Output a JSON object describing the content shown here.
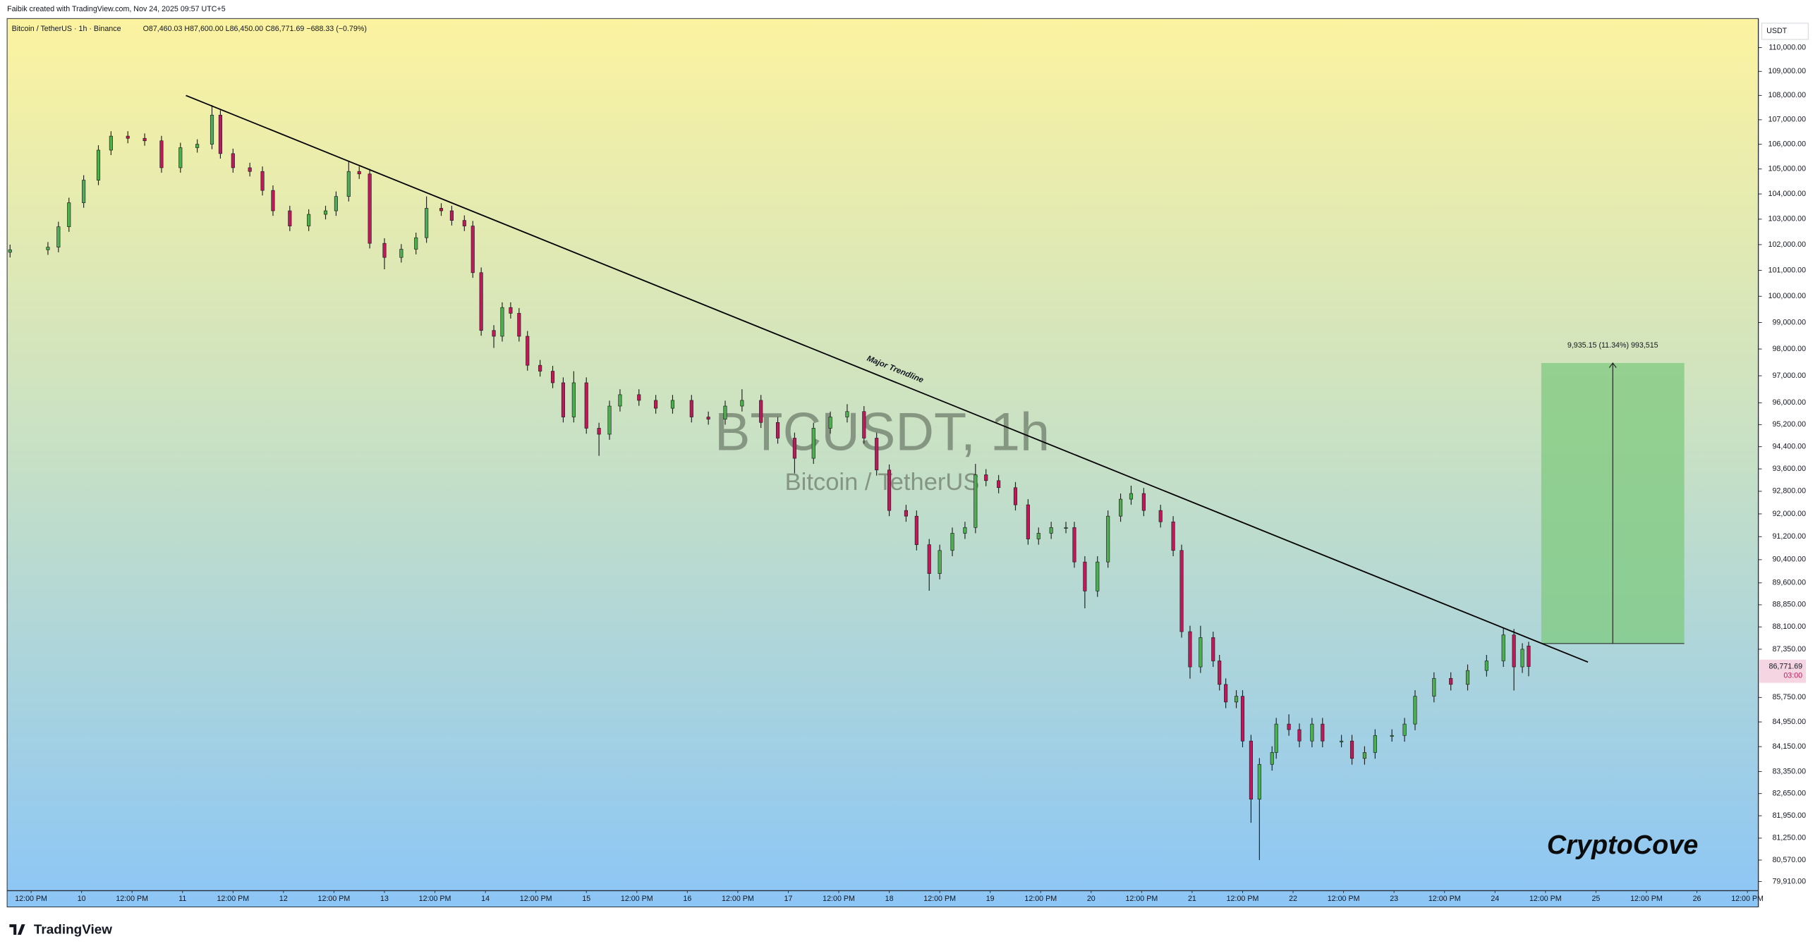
{
  "header": "Faibik created with TradingView.com, Nov 24, 2025 09:57 UTC+5",
  "chart_data": {
    "type": "candlestick",
    "legend": "Bitcoin / TetherUS · 1h · Binance",
    "ohlc_legend": "O87,460.03 H87,600.00 L86,450.00 C86,771.69 −688.33 (−0.79%)",
    "watermark_symbol": "BTCUSDT, 1h",
    "watermark_name": "Bitcoin / TetherUS",
    "currency": "USDT",
    "last_price_label": "86,771.69",
    "countdown": "03:00",
    "up_color": "#4caf50",
    "down_color": "#c2185b",
    "log_y": true,
    "grid": false,
    "xlim": [
      -17.7,
      398.6
    ],
    "ylim": [
      79630,
      111230
    ],
    "x": [
      -17,
      -8,
      -5.5,
      -3,
      0.5,
      4,
      7,
      11,
      15,
      19,
      23.5,
      27.5,
      31,
      33,
      36,
      40,
      43,
      45.5,
      49.5,
      54,
      58,
      60.5,
      63.5,
      66,
      68.5,
      72,
      76,
      79.5,
      82,
      85.5,
      88,
      91,
      93,
      95,
      98,
      100,
      102,
      104,
      106,
      109,
      112,
      114.5,
      117,
      120,
      123,
      125.5,
      128,
      132.5,
      136.5,
      140.5,
      145,
      149,
      153,
      157,
      161.5,
      165.5,
      169.5,
      174,
      178,
      182,
      186,
      189,
      192,
      196,
      198.5,
      201.5,
      204,
      207,
      210,
      212.5,
      215,
      218,
      222,
      225,
      227.5,
      230.5,
      234,
      236,
      238.5,
      241.5,
      244,
      247,
      249.5,
      252.5,
      256.5,
      259.5,
      261.5,
      263.5,
      266,
      269,
      270.5,
      272,
      274.5,
      276,
      278,
      280,
      283,
      284,
      287,
      289.5,
      292.5,
      295,
      299.5,
      302,
      305,
      307.5,
      311.5,
      314.5,
      317,
      321.5,
      325.5,
      329.5,
      334,
      338,
      340.5,
      342.5,
      344
    ],
    "open": [
      101700,
      101800,
      101900,
      102700,
      103650,
      104550,
      105760,
      106330,
      106240,
      106140,
      105050,
      105860,
      106000,
      107190,
      105620,
      105050,
      104900,
      104140,
      103330,
      102730,
      103190,
      103330,
      103900,
      104900,
      104800,
      102050,
      101500,
      101820,
      102270,
      103430,
      103330,
      102950,
      102730,
      100910,
      98700,
      98480,
      99570,
      99350,
      98480,
      97390,
      97170,
      96740,
      95480,
      96740,
      95070,
      94850,
      95880,
      96300,
      96090,
      95800,
      96090,
      95480,
      95400,
      95880,
      96090,
      95280,
      94710,
      93980,
      95070,
      95480,
      95680,
      94710,
      93560,
      92120,
      91920,
      90920,
      89920,
      90720,
      91320,
      91520,
      93390,
      93180,
      92930,
      92320,
      91120,
      91320,
      91520,
      91520,
      90320,
      89320,
      90320,
      91920,
      92520,
      92720,
      92120,
      91720,
      90720,
      87940,
      86760,
      87740,
      86960,
      86180,
      85600,
      85790,
      84330,
      82470,
      83580,
      83960,
      84880,
      84700,
      84330,
      84880,
      84330,
      84330,
      83770,
      83960,
      84510,
      84510,
      84880,
      85790,
      86380,
      86180,
      86640,
      86960,
      87830,
      86760,
      87460.03
    ],
    "high": [
      102000,
      102100,
      102900,
      103850,
      104750,
      105960,
      106530,
      106530,
      106440,
      106340,
      106060,
      106200,
      107600,
      107390,
      105820,
      105250,
      105100,
      104340,
      103530,
      103390,
      103530,
      104100,
      105300,
      105100,
      105000,
      102250,
      102020,
      102470,
      103900,
      103630,
      103530,
      103150,
      102930,
      101110,
      98900,
      99770,
      99770,
      99550,
      98680,
      97590,
      97370,
      96940,
      97170,
      96940,
      95270,
      96080,
      96500,
      96500,
      96290,
      96290,
      96290,
      95680,
      96080,
      96500,
      96290,
      95480,
      94910,
      95270,
      95680,
      95950,
      95880,
      94910,
      93760,
      92320,
      92120,
      91120,
      90920,
      91520,
      91720,
      93780,
      93590,
      93380,
      93130,
      92520,
      91520,
      91720,
      91720,
      91720,
      90520,
      90520,
      92120,
      92720,
      93000,
      92920,
      92320,
      91920,
      90920,
      88140,
      88140,
      87940,
      87160,
      86380,
      85990,
      85990,
      84530,
      83780,
      84160,
      85080,
      85200,
      84900,
      85080,
      85080,
      84530,
      84530,
      84160,
      84710,
      84710,
      85080,
      85990,
      86580,
      86580,
      86840,
      87160,
      88060,
      88030,
      87550,
      87600
    ],
    "low": [
      101500,
      101600,
      101700,
      102500,
      103450,
      104350,
      105560,
      106040,
      105940,
      104850,
      104850,
      105660,
      105800,
      105420,
      104850,
      104700,
      103940,
      103130,
      102530,
      102530,
      102990,
      103130,
      103700,
      104600,
      101850,
      101040,
      101300,
      101620,
      102070,
      103130,
      102750,
      102530,
      100710,
      98500,
      98040,
      98280,
      99150,
      98280,
      97190,
      96970,
      96540,
      95280,
      95280,
      94870,
      94070,
      94650,
      95680,
      95890,
      95600,
      95600,
      95280,
      95200,
      95200,
      95680,
      95080,
      94510,
      93440,
      93780,
      94870,
      95280,
      94510,
      93360,
      91920,
      91720,
      90720,
      89330,
      89720,
      90520,
      91120,
      91320,
      92980,
      92730,
      92120,
      90920,
      90920,
      91120,
      91320,
      90120,
      88730,
      89120,
      90120,
      91720,
      92320,
      91920,
      91520,
      90520,
      87740,
      86370,
      86560,
      86760,
      85980,
      85400,
      85400,
      84130,
      81730,
      80570,
      83380,
      83760,
      84500,
      84130,
      84130,
      84130,
      84130,
      83570,
      83570,
      83760,
      84310,
      84310,
      84680,
      85590,
      85980,
      85980,
      86440,
      86760,
      85980,
      86560,
      86450
    ],
    "close": [
      101800,
      101900,
      102700,
      103650,
      104550,
      105760,
      106330,
      106240,
      106140,
      105050,
      105860,
      106000,
      107190,
      105620,
      105050,
      104900,
      104140,
      103330,
      102730,
      103190,
      103330,
      103900,
      104900,
      104800,
      102050,
      101500,
      101820,
      102270,
      103430,
      103330,
      102950,
      102730,
      100910,
      98700,
      98480,
      99570,
      99350,
      98480,
      97390,
      97170,
      96740,
      95480,
      96740,
      95070,
      94850,
      95880,
      96300,
      96090,
      95800,
      96090,
      95480,
      95400,
      95880,
      96090,
      95280,
      94710,
      93980,
      95070,
      95480,
      95680,
      94710,
      93560,
      92120,
      91920,
      90920,
      89920,
      90720,
      91320,
      91520,
      93390,
      93180,
      92930,
      92320,
      91120,
      91320,
      91520,
      91520,
      90320,
      89320,
      90320,
      91920,
      92520,
      92720,
      92120,
      91720,
      90720,
      87940,
      86760,
      87740,
      86960,
      86180,
      85600,
      85790,
      84330,
      82470,
      83580,
      83960,
      84880,
      84700,
      84330,
      84880,
      84330,
      84330,
      83770,
      83960,
      84510,
      84510,
      84880,
      85790,
      86380,
      86180,
      86640,
      86960,
      87830,
      86760,
      87350,
      86771.69
    ],
    "xticks": [
      {
        "value": -12,
        "label": "12:00 PM"
      },
      {
        "value": 0,
        "label": "10"
      },
      {
        "value": 12,
        "label": "12:00 PM"
      },
      {
        "value": 24,
        "label": "11"
      },
      {
        "value": 36,
        "label": "12:00 PM"
      },
      {
        "value": 48,
        "label": "12"
      },
      {
        "value": 60,
        "label": "12:00 PM"
      },
      {
        "value": 72,
        "label": "13"
      },
      {
        "value": 84,
        "label": "12:00 PM"
      },
      {
        "value": 96,
        "label": "14"
      },
      {
        "value": 108,
        "label": "12:00 PM"
      },
      {
        "value": 120,
        "label": "15"
      },
      {
        "value": 132,
        "label": "12:00 PM"
      },
      {
        "value": 144,
        "label": "16"
      },
      {
        "value": 156,
        "label": "12:00 PM"
      },
      {
        "value": 168,
        "label": "17"
      },
      {
        "value": 180,
        "label": "12:00 PM"
      },
      {
        "value": 192,
        "label": "18"
      },
      {
        "value": 204,
        "label": "12:00 PM"
      },
      {
        "value": 216,
        "label": "19"
      },
      {
        "value": 228,
        "label": "12:00 PM"
      },
      {
        "value": 240,
        "label": "20"
      },
      {
        "value": 252,
        "label": "12:00 PM"
      },
      {
        "value": 264,
        "label": "21"
      },
      {
        "value": 276,
        "label": "12:00 PM"
      },
      {
        "value": 288,
        "label": "22"
      },
      {
        "value": 300,
        "label": "12:00 PM"
      },
      {
        "value": 312,
        "label": "23"
      },
      {
        "value": 324,
        "label": "12:00 PM"
      },
      {
        "value": 336,
        "label": "24"
      },
      {
        "value": 348,
        "label": "12:00 PM"
      },
      {
        "value": 360,
        "label": "25"
      },
      {
        "value": 372,
        "label": "12:00 PM"
      },
      {
        "value": 384,
        "label": "26"
      },
      {
        "value": 396,
        "label": "12:00 PM"
      }
    ],
    "yticks": [
      {
        "value": 110000,
        "label": "110,000.00"
      },
      {
        "value": 109000,
        "label": "109,000.00"
      },
      {
        "value": 108000,
        "label": "108,000.00"
      },
      {
        "value": 107000,
        "label": "107,000.00"
      },
      {
        "value": 106000,
        "label": "106,000.00"
      },
      {
        "value": 105000,
        "label": "105,000.00"
      },
      {
        "value": 104000,
        "label": "104,000.00"
      },
      {
        "value": 103000,
        "label": "103,000.00"
      },
      {
        "value": 102000,
        "label": "102,000.00"
      },
      {
        "value": 101000,
        "label": "101,000.00"
      },
      {
        "value": 100000,
        "label": "100,000.00"
      },
      {
        "value": 99000,
        "label": "99,000.00"
      },
      {
        "value": 98000,
        "label": "98,000.00"
      },
      {
        "value": 97000,
        "label": "97,000.00"
      },
      {
        "value": 96000,
        "label": "96,000.00"
      },
      {
        "value": 95200,
        "label": "95,200.00"
      },
      {
        "value": 94400,
        "label": "94,400.00"
      },
      {
        "value": 93600,
        "label": "93,600.00"
      },
      {
        "value": 92800,
        "label": "92,800.00"
      },
      {
        "value": 92000,
        "label": "92,000.00"
      },
      {
        "value": 91200,
        "label": "91,200.00"
      },
      {
        "value": 90400,
        "label": "90,400.00"
      },
      {
        "value": 89600,
        "label": "89,600.00"
      },
      {
        "value": 88850,
        "label": "88,850.00"
      },
      {
        "value": 88100,
        "label": "88,100.00"
      },
      {
        "value": 87350,
        "label": "87,350.00"
      },
      {
        "value": 85750,
        "label": "85,750.00"
      },
      {
        "value": 84950,
        "label": "84,950.00"
      },
      {
        "value": 84150,
        "label": "84,150.00"
      },
      {
        "value": 83350,
        "label": "83,350.00"
      },
      {
        "value": 82650,
        "label": "82,650.00"
      },
      {
        "value": 81950,
        "label": "81,950.00"
      },
      {
        "value": 81250,
        "label": "81,250.00"
      },
      {
        "value": 80570,
        "label": "80,570.00"
      },
      {
        "value": 79910,
        "label": "79,910.00"
      }
    ],
    "trendline": {
      "label": "Major Trendline",
      "x": [
        24.8,
        358.1
      ],
      "y": [
        108000,
        86920
      ]
    },
    "position": {
      "label": "9,935.15 (11.34%) 993,515",
      "start": 347,
      "end": 381,
      "entry": 87540,
      "target": 97475,
      "color": "#7fc97f"
    }
  },
  "branding": "CryptoCove",
  "footer": "TradingView"
}
